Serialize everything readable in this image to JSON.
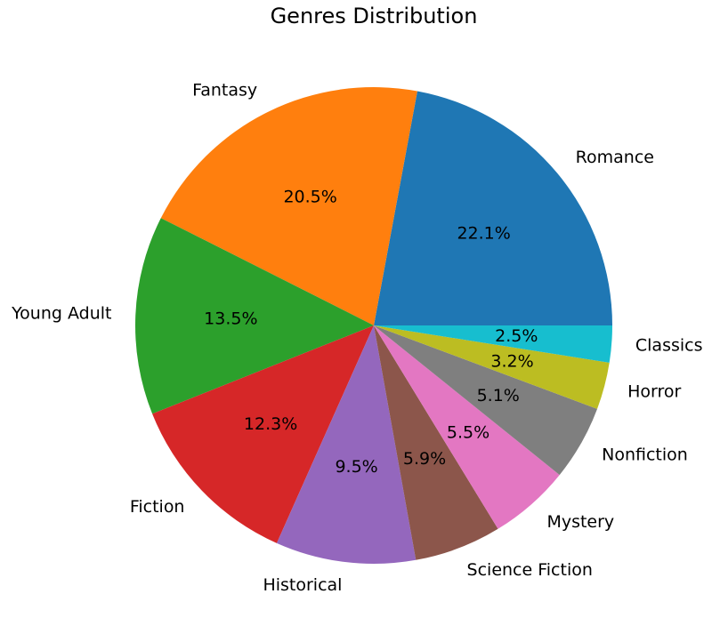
{
  "chart_data": {
    "type": "pie",
    "title": "Genres Distribution",
    "categories": [
      "Romance",
      "Fantasy",
      "Young Adult",
      "Fiction",
      "Historical",
      "Science Fiction",
      "Mystery",
      "Nonfiction",
      "Horror",
      "Classics"
    ],
    "values": [
      22.1,
      20.5,
      13.5,
      12.3,
      9.5,
      5.9,
      5.5,
      5.1,
      3.2,
      2.5
    ],
    "pct_labels": [
      "22.1%",
      "20.5%",
      "13.5%",
      "12.3%",
      "9.5%",
      "5.9%",
      "5.5%",
      "5.1%",
      "3.2%",
      "2.5%"
    ],
    "colors": [
      "#1f77b4",
      "#ff7f0e",
      "#2ca02c",
      "#d62728",
      "#9467bd",
      "#8c564b",
      "#e377c2",
      "#7f7f7f",
      "#bcbd22",
      "#17becf"
    ],
    "start_angle_deg": 0,
    "direction": "counterclockwise",
    "legend": "none"
  }
}
